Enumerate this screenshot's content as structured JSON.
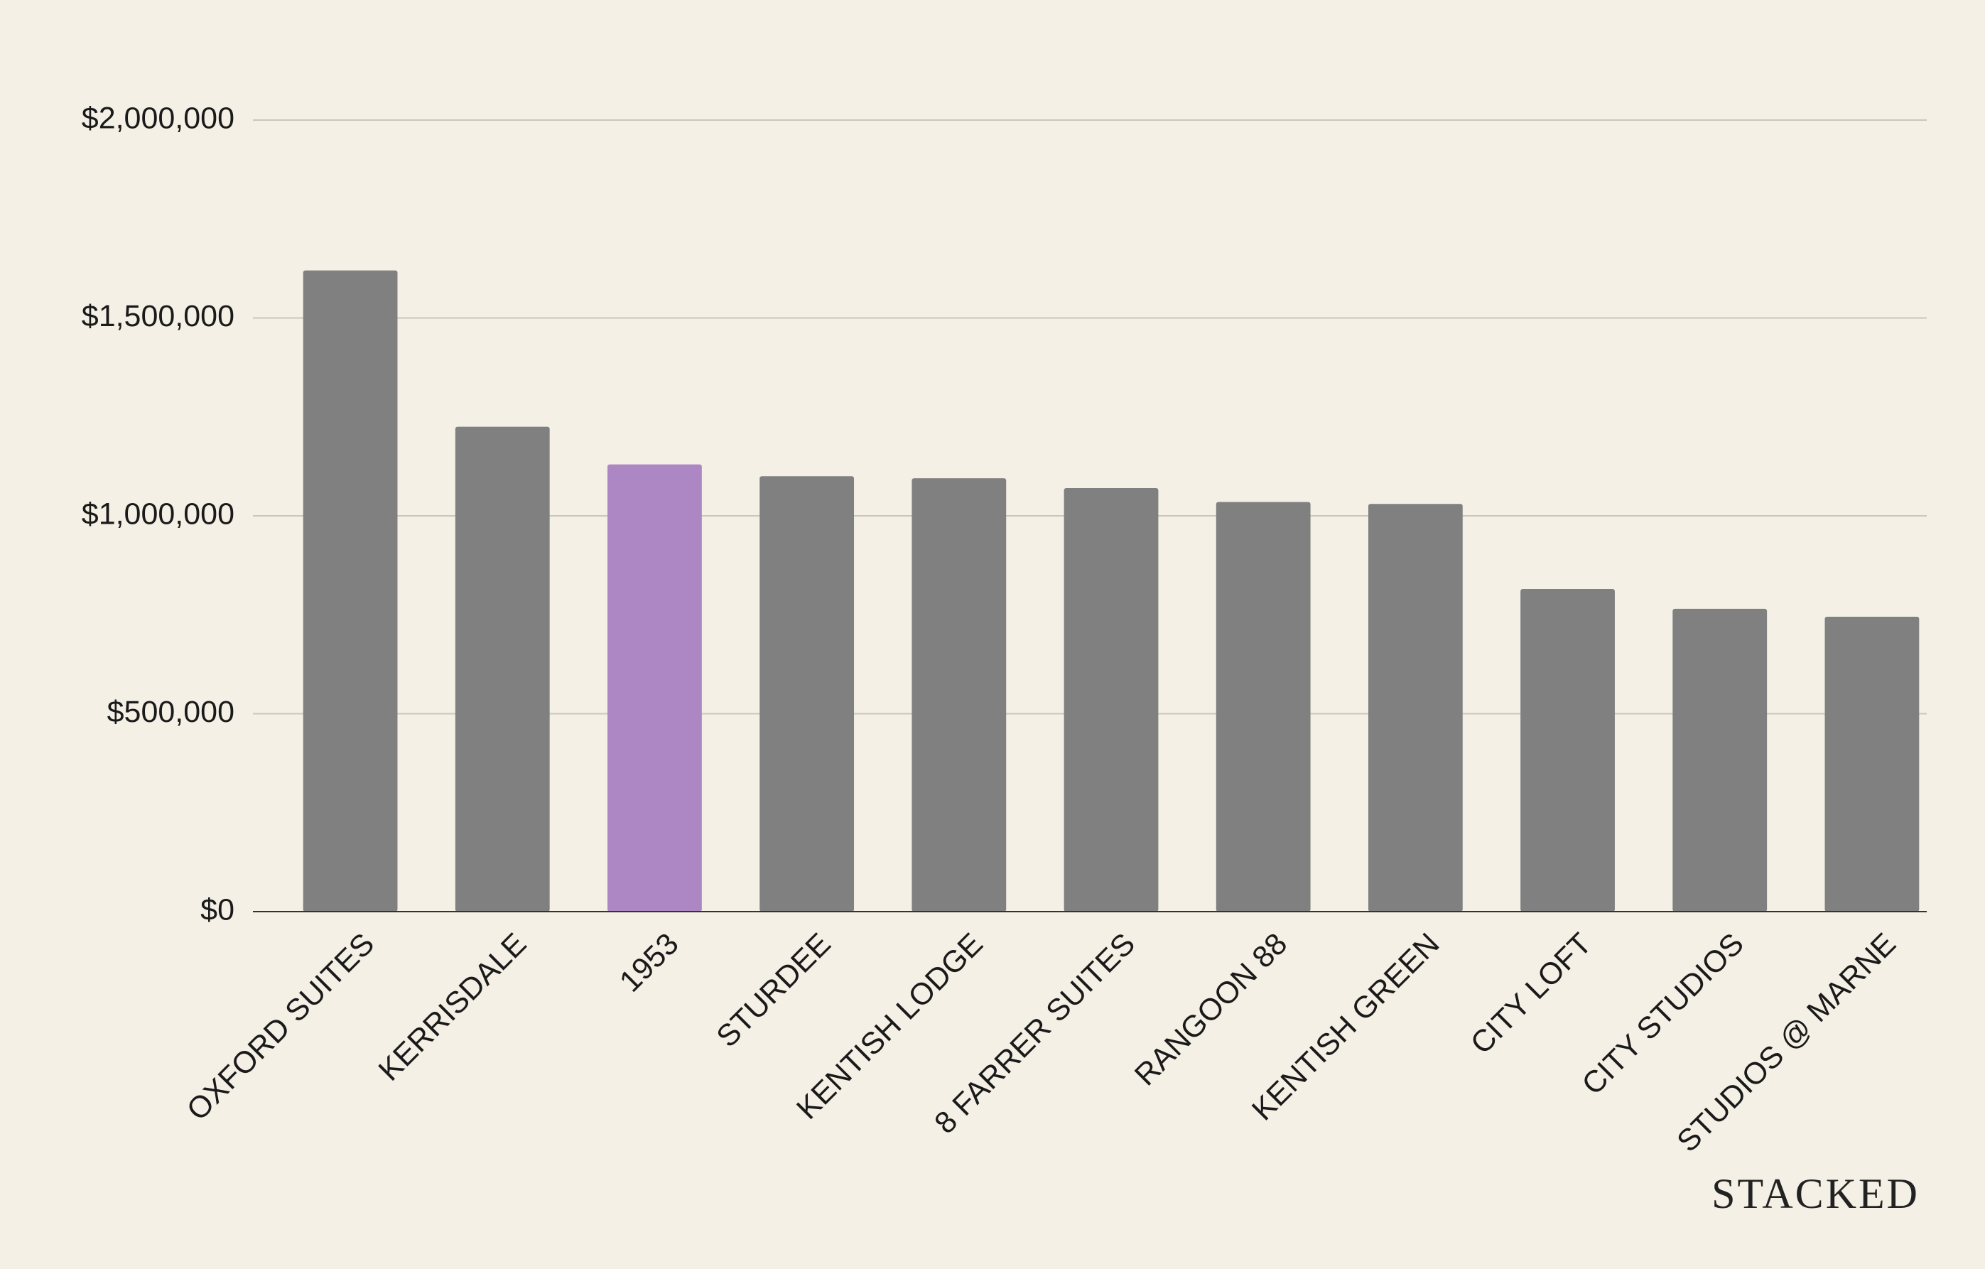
{
  "chart_data": {
    "type": "bar",
    "categories": [
      "OXFORD SUITES",
      "KERRISDALE",
      "1953",
      "STURDEE",
      "KENTISH LODGE",
      "8 FARRER SUITES",
      "RANGOON 88",
      "KENTISH GREEN",
      "CITY LOFT",
      "CITY STUDIOS",
      "STUDIOS @ MARNE"
    ],
    "values": [
      1620000,
      1225000,
      1130000,
      1100000,
      1095000,
      1070000,
      1035000,
      1030000,
      815000,
      765000,
      745000
    ],
    "colors": [
      "#808080",
      "#808080",
      "#ad87c4",
      "#808080",
      "#808080",
      "#808080",
      "#808080",
      "#808080",
      "#808080",
      "#808080",
      "#808080"
    ],
    "ylim": [
      0,
      2000000
    ],
    "yticks": [
      {
        "value": 0,
        "label": "$0"
      },
      {
        "value": 500000,
        "label": "$500,000"
      },
      {
        "value": 1000000,
        "label": "$1,000,000"
      },
      {
        "value": 1500000,
        "label": "$1,500,000"
      },
      {
        "value": 2000000,
        "label": "$2,000,000"
      }
    ],
    "grid": true,
    "watermark": "STACKED"
  }
}
